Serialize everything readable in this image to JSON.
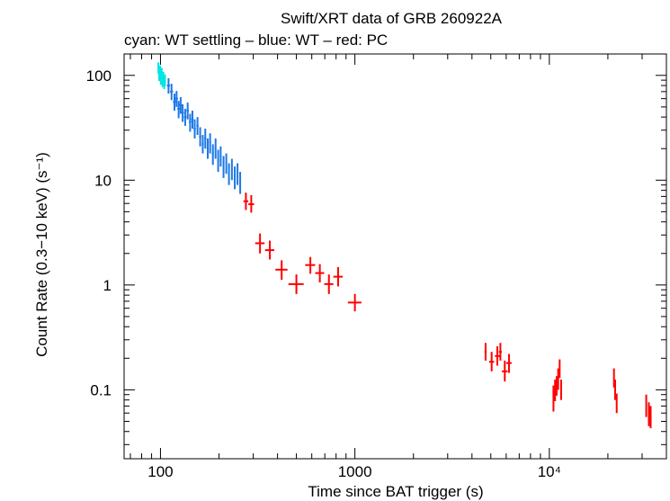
{
  "chart_data": {
    "type": "scatter",
    "title": "Swift/XRT data of GRB 260922A",
    "subtitle": "cyan: WT settling – blue: WT – red: PC",
    "xlabel": "Time since BAT trigger (s)",
    "ylabel": "Count Rate (0.3−10 keV) (s⁻¹)",
    "xscale": "log",
    "yscale": "log",
    "xlim": [
      65,
      40000
    ],
    "ylim": [
      0.022,
      160
    ],
    "x_ticks": [
      {
        "value": 100,
        "label": "100"
      },
      {
        "value": 1000,
        "label": "1000"
      },
      {
        "value": 10000,
        "label": "10⁴"
      }
    ],
    "y_ticks": [
      {
        "value": 0.1,
        "label": "0.1"
      },
      {
        "value": 1,
        "label": "1"
      },
      {
        "value": 10,
        "label": "10"
      },
      {
        "value": 100,
        "label": "100"
      }
    ],
    "grid": false,
    "series": [
      {
        "name": "WT settling",
        "color": "#00e5e5",
        "points": [
          {
            "x": 97.5,
            "y": 118,
            "xerr": 0.5,
            "ylo": 104,
            "yhi": 133
          },
          {
            "x": 98.5,
            "y": 100,
            "xerr": 0.5,
            "ylo": 88,
            "yhi": 113
          },
          {
            "x": 99.5,
            "y": 110,
            "xerr": 0.5,
            "ylo": 97,
            "yhi": 124
          },
          {
            "x": 100.5,
            "y": 92,
            "xerr": 0.5,
            "ylo": 81,
            "yhi": 104
          },
          {
            "x": 101.5,
            "y": 105,
            "xerr": 0.5,
            "ylo": 93,
            "yhi": 118
          },
          {
            "x": 102.5,
            "y": 88,
            "xerr": 0.5,
            "ylo": 77,
            "yhi": 100
          },
          {
            "x": 103.5,
            "y": 96,
            "xerr": 0.5,
            "ylo": 85,
            "yhi": 108
          },
          {
            "x": 104.5,
            "y": 84,
            "xerr": 0.5,
            "ylo": 74,
            "yhi": 95
          },
          {
            "x": 105.5,
            "y": 90,
            "xerr": 0.5,
            "ylo": 79,
            "yhi": 102
          }
        ]
      },
      {
        "name": "WT",
        "color": "#1e78e6",
        "points": [
          {
            "x": 110,
            "y": 80,
            "xerr": 2,
            "ylo": 67,
            "yhi": 94
          },
          {
            "x": 114,
            "y": 70,
            "xerr": 2,
            "ylo": 58,
            "yhi": 83
          },
          {
            "x": 118,
            "y": 56,
            "xerr": 2,
            "ylo": 46,
            "yhi": 67
          },
          {
            "x": 121,
            "y": 60,
            "xerr": 2,
            "ylo": 50,
            "yhi": 71
          },
          {
            "x": 124,
            "y": 48,
            "xerr": 2,
            "ylo": 39,
            "yhi": 57
          },
          {
            "x": 127,
            "y": 52,
            "xerr": 2,
            "ylo": 43,
            "yhi": 62
          },
          {
            "x": 130,
            "y": 44,
            "xerr": 2,
            "ylo": 36,
            "yhi": 53
          },
          {
            "x": 134,
            "y": 40,
            "xerr": 2,
            "ylo": 33,
            "yhi": 48
          },
          {
            "x": 138,
            "y": 46,
            "xerr": 2,
            "ylo": 38,
            "yhi": 55
          },
          {
            "x": 142,
            "y": 36,
            "xerr": 2,
            "ylo": 29,
            "yhi": 43
          },
          {
            "x": 146,
            "y": 38,
            "xerr": 2,
            "ylo": 31,
            "yhi": 46
          },
          {
            "x": 150,
            "y": 31,
            "xerr": 2,
            "ylo": 25,
            "yhi": 38
          },
          {
            "x": 155,
            "y": 33,
            "xerr": 2,
            "ylo": 27,
            "yhi": 40
          },
          {
            "x": 160,
            "y": 26,
            "xerr": 2,
            "ylo": 21,
            "yhi": 32
          },
          {
            "x": 165,
            "y": 22,
            "xerr": 2,
            "ylo": 18,
            "yhi": 27
          },
          {
            "x": 170,
            "y": 25,
            "xerr": 2,
            "ylo": 20,
            "yhi": 31
          },
          {
            "x": 175,
            "y": 20,
            "xerr": 2,
            "ylo": 16,
            "yhi": 25
          },
          {
            "x": 180,
            "y": 23,
            "xerr": 2,
            "ylo": 18,
            "yhi": 28
          },
          {
            "x": 186,
            "y": 18,
            "xerr": 2,
            "ylo": 14,
            "yhi": 22
          },
          {
            "x": 192,
            "y": 20,
            "xerr": 2,
            "ylo": 16,
            "yhi": 25
          },
          {
            "x": 198,
            "y": 15.5,
            "xerr": 2,
            "ylo": 12,
            "yhi": 19.5
          },
          {
            "x": 204,
            "y": 17,
            "xerr": 2,
            "ylo": 13.5,
            "yhi": 21
          },
          {
            "x": 211,
            "y": 13.5,
            "xerr": 2,
            "ylo": 10.5,
            "yhi": 17
          },
          {
            "x": 218,
            "y": 14.5,
            "xerr": 2,
            "ylo": 11.5,
            "yhi": 18
          },
          {
            "x": 225,
            "y": 11.5,
            "xerr": 2,
            "ylo": 9,
            "yhi": 14.5
          },
          {
            "x": 233,
            "y": 12.5,
            "xerr": 2,
            "ylo": 10,
            "yhi": 16
          },
          {
            "x": 241,
            "y": 10.5,
            "xerr": 2,
            "ylo": 8.2,
            "yhi": 13.5
          },
          {
            "x": 249,
            "y": 11.5,
            "xerr": 2,
            "ylo": 9,
            "yhi": 14.5
          },
          {
            "x": 257,
            "y": 9.5,
            "xerr": 2,
            "ylo": 7.4,
            "yhi": 12
          }
        ]
      },
      {
        "name": "PC",
        "color": "#ff0000",
        "points": [
          {
            "x": 275,
            "y": 6.3,
            "xerr": 8,
            "ylo": 5.2,
            "yhi": 7.6
          },
          {
            "x": 293,
            "y": 5.9,
            "xerr": 10,
            "ylo": 4.9,
            "yhi": 7.2
          },
          {
            "x": 325,
            "y": 2.5,
            "xerr": 18,
            "ylo": 2.0,
            "yhi": 3.1
          },
          {
            "x": 365,
            "y": 2.15,
            "xerr": 20,
            "ylo": 1.75,
            "yhi": 2.65
          },
          {
            "x": 420,
            "y": 1.4,
            "xerr": 30,
            "ylo": 1.12,
            "yhi": 1.72
          },
          {
            "x": 500,
            "y": 1.02,
            "xerr": 45,
            "ylo": 0.82,
            "yhi": 1.26
          },
          {
            "x": 590,
            "y": 1.55,
            "xerr": 35,
            "ylo": 1.28,
            "yhi": 1.85
          },
          {
            "x": 660,
            "y": 1.3,
            "xerr": 35,
            "ylo": 1.06,
            "yhi": 1.58
          },
          {
            "x": 735,
            "y": 1.02,
            "xerr": 40,
            "ylo": 0.82,
            "yhi": 1.26
          },
          {
            "x": 820,
            "y": 1.2,
            "xerr": 45,
            "ylo": 0.97,
            "yhi": 1.48
          },
          {
            "x": 1000,
            "y": 0.68,
            "xerr": 80,
            "ylo": 0.56,
            "yhi": 0.82
          },
          {
            "x": 4700,
            "y": 0.23,
            "xerr": 60,
            "ylo": 0.19,
            "yhi": 0.28
          },
          {
            "x": 5050,
            "y": 0.185,
            "xerr": 150,
            "ylo": 0.15,
            "yhi": 0.23
          },
          {
            "x": 5400,
            "y": 0.21,
            "xerr": 150,
            "ylo": 0.17,
            "yhi": 0.26
          },
          {
            "x": 5600,
            "y": 0.23,
            "xerr": 100,
            "ylo": 0.19,
            "yhi": 0.28
          },
          {
            "x": 5900,
            "y": 0.15,
            "xerr": 200,
            "ylo": 0.12,
            "yhi": 0.19
          },
          {
            "x": 6200,
            "y": 0.18,
            "xerr": 200,
            "ylo": 0.145,
            "yhi": 0.22
          },
          {
            "x": 10500,
            "y": 0.085,
            "xerr": 80,
            "ylo": 0.062,
            "yhi": 0.11
          },
          {
            "x": 10700,
            "y": 0.1,
            "xerr": 80,
            "ylo": 0.078,
            "yhi": 0.125
          },
          {
            "x": 10900,
            "y": 0.11,
            "xerr": 80,
            "ylo": 0.088,
            "yhi": 0.135
          },
          {
            "x": 11100,
            "y": 0.13,
            "xerr": 80,
            "ylo": 0.1,
            "yhi": 0.16
          },
          {
            "x": 11300,
            "y": 0.16,
            "xerr": 80,
            "ylo": 0.13,
            "yhi": 0.195
          },
          {
            "x": 11500,
            "y": 0.1,
            "xerr": 100,
            "ylo": 0.08,
            "yhi": 0.125
          },
          {
            "x": 21500,
            "y": 0.13,
            "xerr": 100,
            "ylo": 0.105,
            "yhi": 0.16
          },
          {
            "x": 21800,
            "y": 0.1,
            "xerr": 100,
            "ylo": 0.08,
            "yhi": 0.125
          },
          {
            "x": 22200,
            "y": 0.075,
            "xerr": 100,
            "ylo": 0.06,
            "yhi": 0.092
          },
          {
            "x": 31500,
            "y": 0.072,
            "xerr": 150,
            "ylo": 0.055,
            "yhi": 0.09
          },
          {
            "x": 32500,
            "y": 0.06,
            "xerr": 150,
            "ylo": 0.045,
            "yhi": 0.076
          },
          {
            "x": 33200,
            "y": 0.055,
            "xerr": 150,
            "ylo": 0.043,
            "yhi": 0.07
          }
        ]
      }
    ]
  }
}
